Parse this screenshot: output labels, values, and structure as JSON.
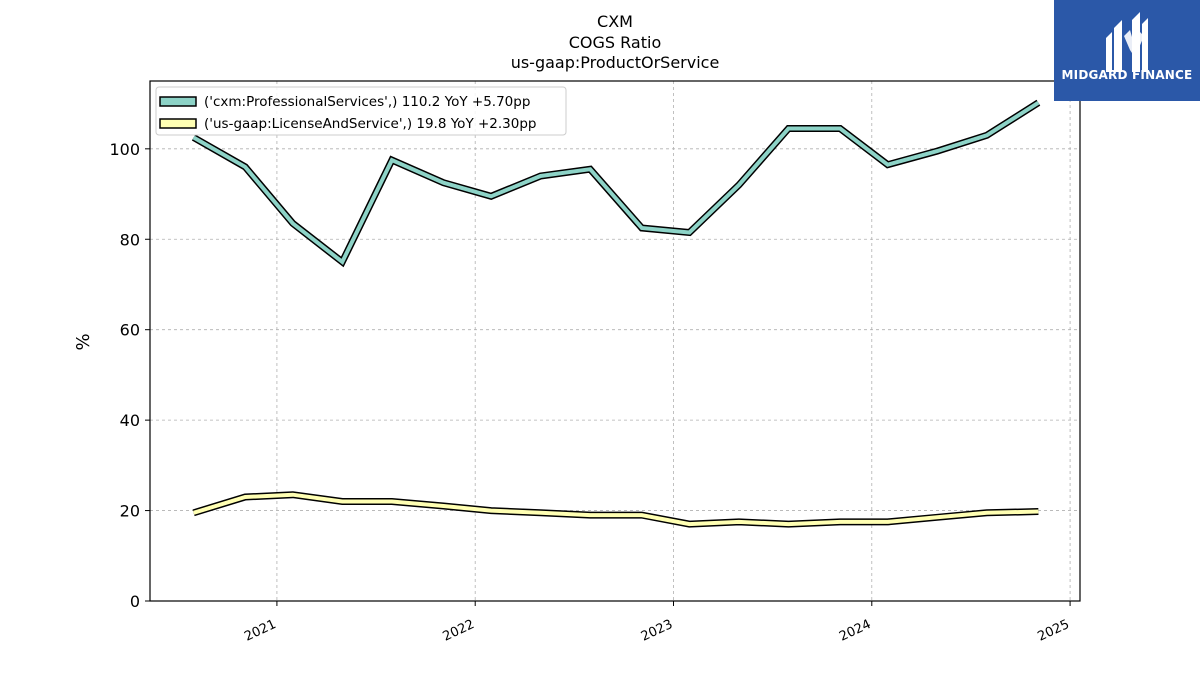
{
  "chart_data": {
    "type": "line",
    "title_lines": [
      "CXM",
      "COGS Ratio",
      "us-gaap:ProductOrService"
    ],
    "xlabel": "",
    "ylabel": "%",
    "ylim": [
      0,
      115
    ],
    "yticks": [
      0,
      20,
      40,
      60,
      80,
      100
    ],
    "xlim": [
      2020.36,
      2025.05
    ],
    "xticks": [
      2021,
      2022,
      2023,
      2024,
      2025
    ],
    "xtick_labels": [
      "2021",
      "2022",
      "2023",
      "2024",
      "2025"
    ],
    "grid": true,
    "legend_position": "top-left",
    "series": [
      {
        "name": "('cxm:ProfessionalServices',) 110.2 YoY +5.70pp",
        "color": "#8dd3c7",
        "x": [
          2020.58,
          2020.84,
          2021.08,
          2021.33,
          2021.58,
          2021.84,
          2022.08,
          2022.33,
          2022.58,
          2022.84,
          2023.08,
          2023.33,
          2023.58,
          2023.84,
          2024.08,
          2024.33,
          2024.58,
          2024.84
        ],
        "values": [
          102.5,
          96.0,
          83.5,
          75.0,
          97.5,
          92.5,
          89.5,
          94.0,
          95.5,
          82.5,
          81.5,
          92.0,
          104.5,
          104.5,
          96.5,
          99.5,
          103.0,
          110.2
        ]
      },
      {
        "name": "('us-gaap:LicenseAndService',) 19.8 YoY +2.30pp",
        "color": "#ffffb3",
        "x": [
          2020.58,
          2020.84,
          2021.08,
          2021.33,
          2021.58,
          2021.84,
          2022.08,
          2022.33,
          2022.58,
          2022.84,
          2023.08,
          2023.33,
          2023.58,
          2023.84,
          2024.08,
          2024.33,
          2024.58,
          2024.84
        ],
        "values": [
          19.5,
          23.0,
          23.5,
          22.0,
          22.0,
          21.0,
          20.0,
          19.5,
          19.0,
          19.0,
          17.0,
          17.5,
          17.0,
          17.5,
          17.5,
          18.5,
          19.5,
          19.8
        ]
      }
    ]
  },
  "logo": {
    "text": "MIDGARD FINANCE",
    "background": "#2b58a8"
  }
}
